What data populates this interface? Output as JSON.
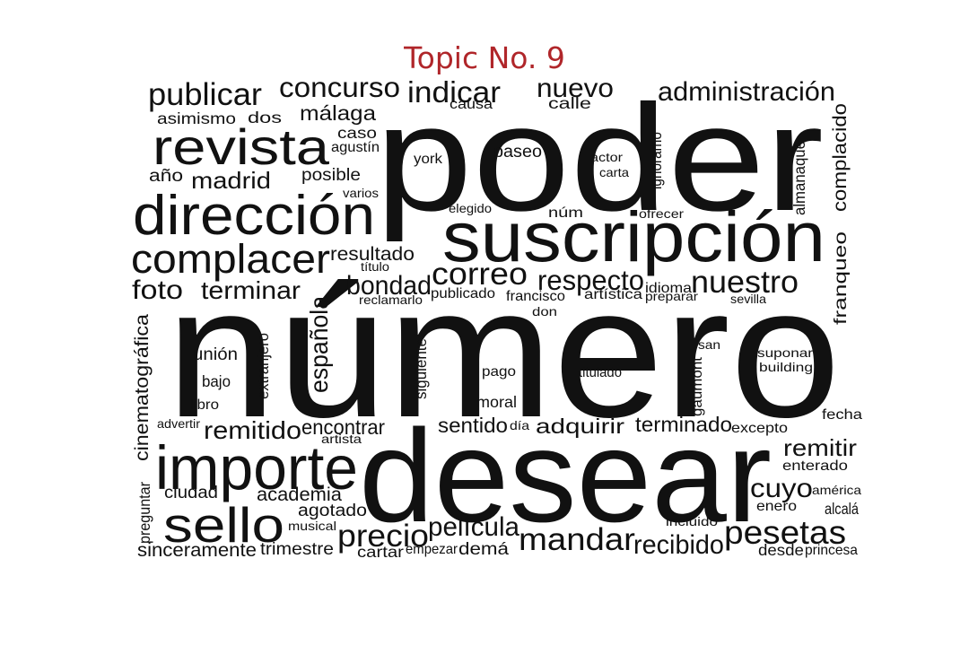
{
  "title": "Topic No. 9",
  "title_color": "#b0262a",
  "word_color": "#111111",
  "words": [
    "poder",
    "número",
    "desear",
    "suscripción",
    "importe",
    "dirección",
    "revista",
    "sello",
    "complacer",
    "mandar",
    "pesetas",
    "publicar",
    "concurso",
    "indicar",
    "nuevo",
    "administración",
    "correo",
    "respecto",
    "nuestro",
    "película",
    "precio",
    "recibido",
    "foto",
    "terminar",
    "bondad",
    "remitido",
    "encontrar",
    "sentido",
    "adquirir",
    "terminado",
    "remitir",
    "cuyo",
    "madrid",
    "málaga",
    "resultado",
    "unión",
    "española",
    "cinematográfica",
    "franqueo",
    "complacido",
    "academia",
    "ciudad",
    "agotado",
    "sinceramente",
    "trimestre",
    "cartar",
    "empezar",
    "demá",
    "desde",
    "princesa",
    "asimismo",
    "dos",
    "causa",
    "calle",
    "caso",
    "agustín",
    "año",
    "posible",
    "varios",
    "york",
    "paseo",
    "actor",
    "carta",
    "ignoramo",
    "almanaque",
    "elegido",
    "núm",
    "ofrecer",
    "título",
    "reclamarlo",
    "publicado",
    "francisco",
    "artística",
    "idioma",
    "preparar",
    "sevilla",
    "don",
    "san",
    "suponar",
    "building",
    "bajo",
    "libro",
    "extranjero",
    "siguiente",
    "pago",
    "titulado",
    "gaumont",
    "moral",
    "advertir",
    "artista",
    "día",
    "excepto",
    "fecha",
    "enterado",
    "américa",
    "enero",
    "alcalá",
    "incluido",
    "musical",
    "preguntar"
  ]
}
